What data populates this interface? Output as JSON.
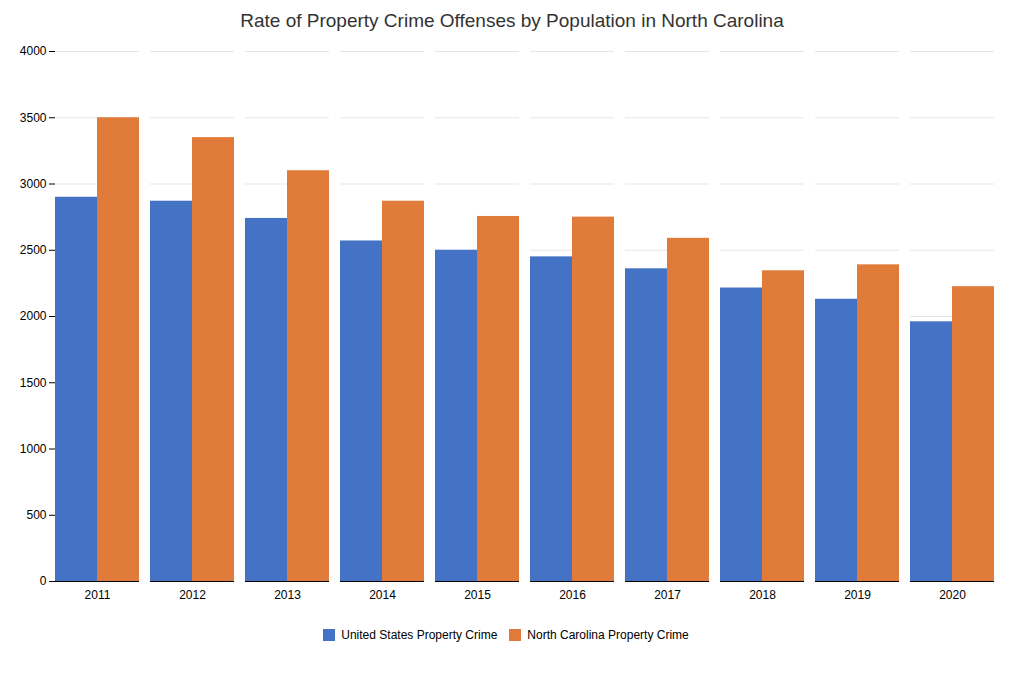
{
  "chart_data": {
    "type": "bar",
    "title": "Rate of Property Crime Offenses by Population in North Carolina",
    "categories": [
      "2011",
      "2012",
      "2013",
      "2014",
      "2015",
      "2016",
      "2017",
      "2018",
      "2019",
      "2020"
    ],
    "series": [
      {
        "name": "United States Property Crime",
        "color": "#4472C4",
        "values": [
          2900,
          2870,
          2740,
          2570,
          2500,
          2450,
          2360,
          2215,
          2130,
          1960
        ]
      },
      {
        "name": "North Carolina Property Crime",
        "color": "#E07B39",
        "values": [
          3500,
          3350,
          3100,
          2870,
          2755,
          2750,
          2590,
          2345,
          2390,
          2225
        ]
      }
    ],
    "ylim": [
      0,
      4000
    ],
    "yticks": [
      0,
      500,
      1000,
      1500,
      2000,
      2500,
      3000,
      3500,
      4000
    ],
    "grid": true,
    "legend": "bottom"
  }
}
